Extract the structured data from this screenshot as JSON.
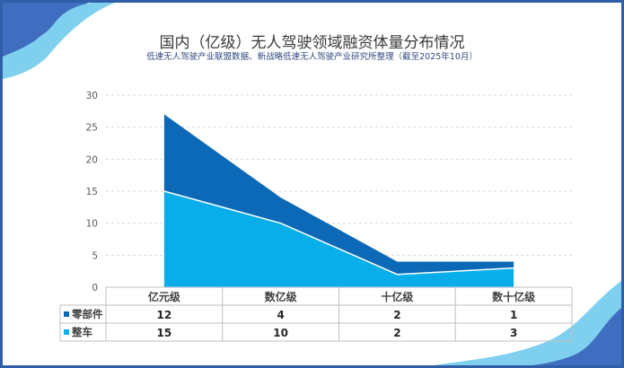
{
  "chart_data": {
    "type": "area",
    "stacked": true,
    "title": "国内（亿级）无人驾驶领域融资体量分布情况",
    "subtitle": "低速无人驾驶产业联盟数据、新战略低速无人驾驶产业研究所整理（截至2025年10月）",
    "categories": [
      "亿元级",
      "数亿级",
      "十亿级",
      "数十亿级"
    ],
    "ylim": [
      0,
      30
    ],
    "yticks": [
      0,
      5,
      10,
      15,
      20,
      25,
      30
    ],
    "grid": true,
    "legend": "data-table",
    "series": [
      {
        "name": "零部件",
        "values": [
          12,
          4,
          2,
          1
        ],
        "color": "#0b69b7"
      },
      {
        "name": "整车",
        "values": [
          15,
          10,
          2,
          3
        ],
        "color": "#08aeea"
      }
    ]
  },
  "colors": {
    "frame": "#2f5fa8",
    "grid": "#d9d9d9",
    "axis_text": "#595959",
    "table_border": "#bfbfbf"
  }
}
